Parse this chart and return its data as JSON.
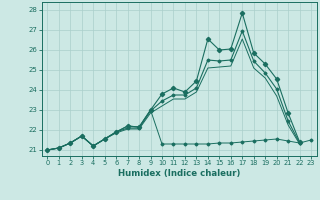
{
  "xlabel": "Humidex (Indice chaleur)",
  "bg_color": "#cce8e4",
  "grid_color": "#aacfcb",
  "line_color": "#1a6e60",
  "xlim": [
    -0.5,
    23.5
  ],
  "ylim": [
    20.7,
    28.4
  ],
  "yticks": [
    21,
    22,
    23,
    24,
    25,
    26,
    27,
    28
  ],
  "xticks": [
    0,
    1,
    2,
    3,
    4,
    5,
    6,
    7,
    8,
    9,
    10,
    11,
    12,
    13,
    14,
    15,
    16,
    17,
    18,
    19,
    20,
    21,
    22,
    23
  ],
  "series_flat": [
    21.0,
    21.1,
    21.35,
    21.7,
    21.2,
    21.55,
    21.9,
    22.2,
    22.15,
    23.0,
    21.3,
    21.3,
    21.3,
    21.3,
    21.3,
    21.35,
    21.35,
    21.4,
    21.45,
    21.5,
    21.55,
    21.45,
    21.35,
    21.5
  ],
  "series_top": [
    21.0,
    21.1,
    21.35,
    21.7,
    21.2,
    21.55,
    21.9,
    22.2,
    22.15,
    23.0,
    23.8,
    24.1,
    23.9,
    24.45,
    26.55,
    26.0,
    26.05,
    27.85,
    25.85,
    25.3,
    24.55,
    22.85,
    21.4,
    null
  ],
  "series_mid1": [
    21.0,
    21.1,
    21.35,
    21.7,
    21.2,
    21.55,
    21.9,
    22.1,
    22.1,
    22.95,
    23.45,
    23.75,
    23.75,
    24.1,
    25.5,
    25.45,
    25.5,
    26.95,
    25.45,
    24.85,
    24.05,
    22.45,
    21.35,
    null
  ],
  "series_mid2": [
    21.0,
    21.1,
    21.35,
    21.7,
    21.2,
    21.55,
    21.85,
    22.05,
    22.05,
    22.85,
    23.2,
    23.55,
    23.55,
    23.9,
    25.1,
    25.15,
    25.2,
    26.55,
    25.1,
    24.6,
    23.7,
    22.25,
    21.3,
    null
  ]
}
